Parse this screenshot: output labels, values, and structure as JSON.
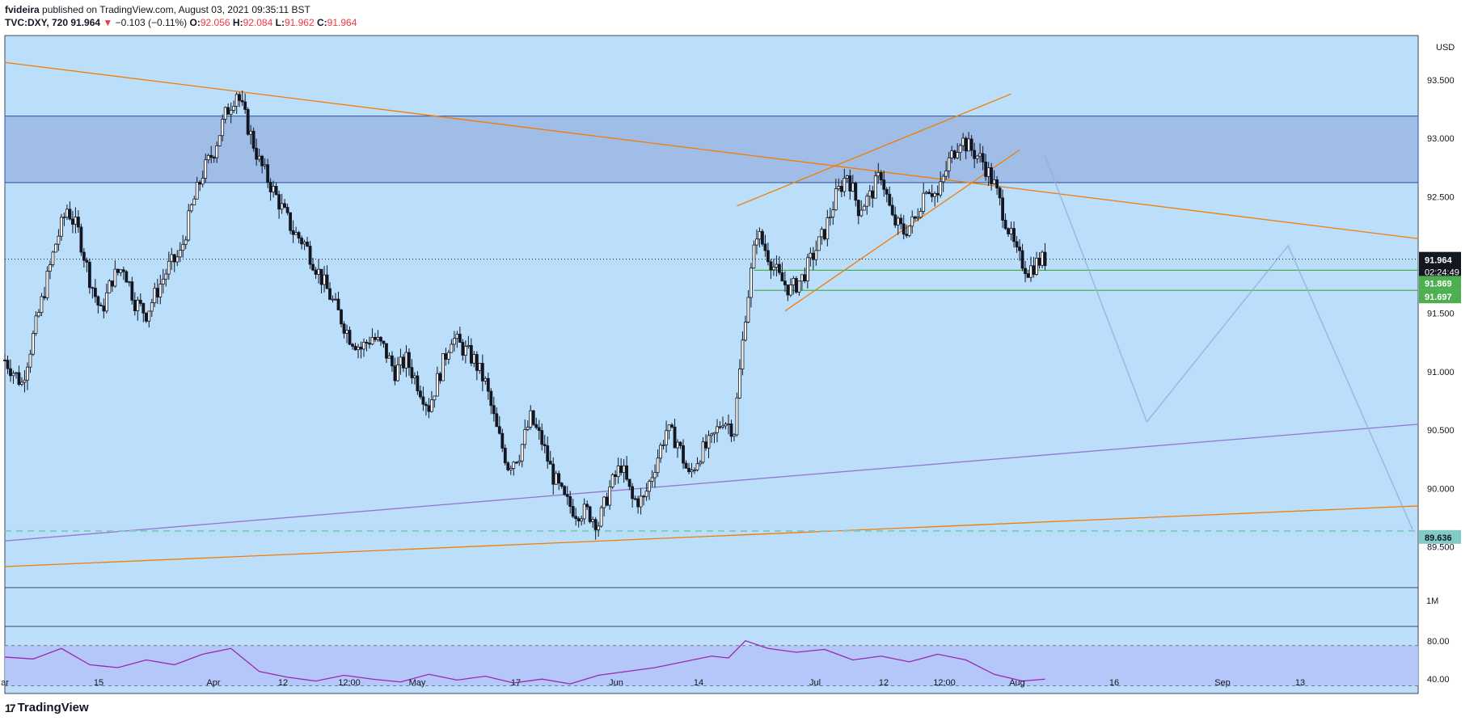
{
  "header": {
    "author": "fvideira",
    "published_text": " published on TradingView.com, August 03, 2021 09:35:11 BST",
    "symbol": "TVC:DXY, 720",
    "last": "91.964",
    "change": "−0.103 (−0.11%)",
    "o_label": "O:",
    "o": "92.056",
    "h_label": "H:",
    "h": "92.084",
    "l_label": "L:",
    "l": "91.962",
    "c_label": "C:",
    "c": "91.964"
  },
  "footer": {
    "brand": "TradingView",
    "logo": "17"
  },
  "chart_data": {
    "type": "candlestick",
    "currency": "USD",
    "ylim": [
      89.15,
      93.88
    ],
    "y_ticks": [
      "93.500",
      "93.000",
      "92.500",
      "92.000",
      "91.500",
      "91.000",
      "90.500",
      "90.000",
      "89.500"
    ],
    "x_ticks": [
      "ar",
      "15",
      "Apr",
      "12",
      "12:00",
      "May",
      "17",
      "Jun",
      "14",
      "Jul",
      "12",
      "12:00",
      "Aug",
      "16",
      "Sep",
      "13"
    ],
    "price_label": {
      "value": "91.964",
      "countdown": "02:24:49"
    },
    "level_labels": [
      {
        "value": "91.869",
        "price": 91.869,
        "color": "#4caf50"
      },
      {
        "value": "91.697",
        "price": 91.697,
        "color": "#4caf50"
      },
      {
        "value": "89.636",
        "price": 89.636,
        "color": "#80cbc4"
      }
    ],
    "resistance_zone": [
      92.62,
      93.19
    ],
    "close_path": [
      [
        0,
        91.1
      ],
      [
        6,
        90.9
      ],
      [
        12,
        91.5
      ],
      [
        18,
        92.1
      ],
      [
        22,
        92.4
      ],
      [
        26,
        92.2
      ],
      [
        30,
        91.8
      ],
      [
        34,
        91.5
      ],
      [
        38,
        91.8
      ],
      [
        42,
        91.9
      ],
      [
        46,
        91.6
      ],
      [
        50,
        91.5
      ],
      [
        54,
        91.7
      ],
      [
        58,
        91.9
      ],
      [
        62,
        92.0
      ],
      [
        66,
        92.4
      ],
      [
        70,
        92.7
      ],
      [
        74,
        92.9
      ],
      [
        78,
        93.2
      ],
      [
        82,
        93.4
      ],
      [
        86,
        93.1
      ],
      [
        90,
        92.8
      ],
      [
        94,
        92.6
      ],
      [
        98,
        92.4
      ],
      [
        102,
        92.2
      ],
      [
        106,
        92.1
      ],
      [
        110,
        91.9
      ],
      [
        114,
        91.7
      ],
      [
        118,
        91.5
      ],
      [
        122,
        91.3
      ],
      [
        126,
        91.2
      ],
      [
        130,
        91.3
      ],
      [
        134,
        91.2
      ],
      [
        138,
        91.0
      ],
      [
        142,
        91.1
      ],
      [
        146,
        90.9
      ],
      [
        150,
        90.7
      ],
      [
        154,
        91.0
      ],
      [
        158,
        91.3
      ],
      [
        162,
        91.2
      ],
      [
        166,
        91.1
      ],
      [
        170,
        90.9
      ],
      [
        174,
        90.5
      ],
      [
        178,
        90.2
      ],
      [
        182,
        90.3
      ],
      [
        186,
        90.6
      ],
      [
        190,
        90.4
      ],
      [
        194,
        90.1
      ],
      [
        198,
        89.9
      ],
      [
        202,
        89.8
      ],
      [
        206,
        89.8
      ],
      [
        210,
        89.7
      ],
      [
        214,
        90.0
      ],
      [
        218,
        90.2
      ],
      [
        222,
        89.9
      ],
      [
        226,
        89.9
      ],
      [
        230,
        90.2
      ],
      [
        234,
        90.5
      ],
      [
        238,
        90.4
      ],
      [
        242,
        90.1
      ],
      [
        246,
        90.3
      ],
      [
        250,
        90.4
      ],
      [
        254,
        90.6
      ],
      [
        258,
        90.5
      ],
      [
        262,
        91.5
      ],
      [
        266,
        92.2
      ],
      [
        270,
        92.0
      ],
      [
        274,
        91.8
      ],
      [
        278,
        91.7
      ],
      [
        282,
        91.8
      ],
      [
        286,
        92.0
      ],
      [
        290,
        92.2
      ],
      [
        294,
        92.5
      ],
      [
        298,
        92.7
      ],
      [
        302,
        92.4
      ],
      [
        306,
        92.5
      ],
      [
        310,
        92.7
      ],
      [
        314,
        92.3
      ],
      [
        318,
        92.2
      ],
      [
        322,
        92.3
      ],
      [
        326,
        92.6
      ],
      [
        330,
        92.5
      ],
      [
        334,
        92.8
      ],
      [
        338,
        93.0
      ],
      [
        342,
        92.9
      ],
      [
        346,
        92.8
      ],
      [
        350,
        92.6
      ],
      [
        354,
        92.3
      ],
      [
        358,
        92.0
      ],
      [
        362,
        91.87
      ],
      [
        366,
        91.95
      ],
      [
        368,
        91.964
      ]
    ],
    "ref_lines": [
      {
        "name": "downtrend",
        "color": "#f57c00",
        "p1": [
          0,
          93.65
        ],
        "p2": [
          500,
          92.14
        ]
      },
      {
        "name": "lower-channel",
        "color": "#f57c00",
        "p1": [
          0,
          89.33
        ],
        "p2": [
          500,
          89.85
        ]
      },
      {
        "name": "purple-trend",
        "color": "#9575cd",
        "p1": [
          0,
          89.55
        ],
        "p2": [
          500,
          90.55
        ]
      },
      {
        "name": "wedge-upper",
        "color": "#f57c00",
        "p1": [
          259,
          92.42
        ],
        "p2": [
          356,
          93.38
        ]
      },
      {
        "name": "wedge-lower",
        "color": "#f57c00",
        "p1": [
          276,
          91.52
        ],
        "p2": [
          359,
          92.9
        ]
      },
      {
        "name": "support-1",
        "color": "#4caf50",
        "p1": [
          265,
          91.869
        ],
        "p2": [
          500,
          91.869
        ]
      },
      {
        "name": "support-2",
        "color": "#4caf50",
        "p1": [
          265,
          91.697
        ],
        "p2": [
          500,
          91.697
        ]
      }
    ],
    "projection_path": [
      [
        368,
        92.85
      ],
      [
        404,
        90.57
      ],
      [
        454,
        92.08
      ],
      [
        498,
        89.65
      ]
    ],
    "rsi": {
      "upper": "80.00",
      "lower": "40.00",
      "ylim": [
        25,
        95
      ],
      "band": [
        33,
        75
      ],
      "path": [
        [
          0,
          63
        ],
        [
          10,
          61
        ],
        [
          20,
          72
        ],
        [
          30,
          55
        ],
        [
          40,
          52
        ],
        [
          50,
          60
        ],
        [
          60,
          55
        ],
        [
          70,
          66
        ],
        [
          80,
          72
        ],
        [
          90,
          48
        ],
        [
          100,
          42
        ],
        [
          110,
          38
        ],
        [
          120,
          44
        ],
        [
          130,
          40
        ],
        [
          140,
          37
        ],
        [
          150,
          45
        ],
        [
          160,
          39
        ],
        [
          170,
          43
        ],
        [
          180,
          36
        ],
        [
          190,
          40
        ],
        [
          200,
          35
        ],
        [
          210,
          44
        ],
        [
          220,
          48
        ],
        [
          230,
          52
        ],
        [
          240,
          58
        ],
        [
          250,
          64
        ],
        [
          256,
          62
        ],
        [
          262,
          80
        ],
        [
          270,
          72
        ],
        [
          280,
          68
        ],
        [
          290,
          71
        ],
        [
          300,
          60
        ],
        [
          310,
          64
        ],
        [
          320,
          58
        ],
        [
          330,
          66
        ],
        [
          340,
          60
        ],
        [
          350,
          45
        ],
        [
          360,
          38
        ],
        [
          368,
          40
        ]
      ]
    },
    "volume_label": "1M"
  }
}
